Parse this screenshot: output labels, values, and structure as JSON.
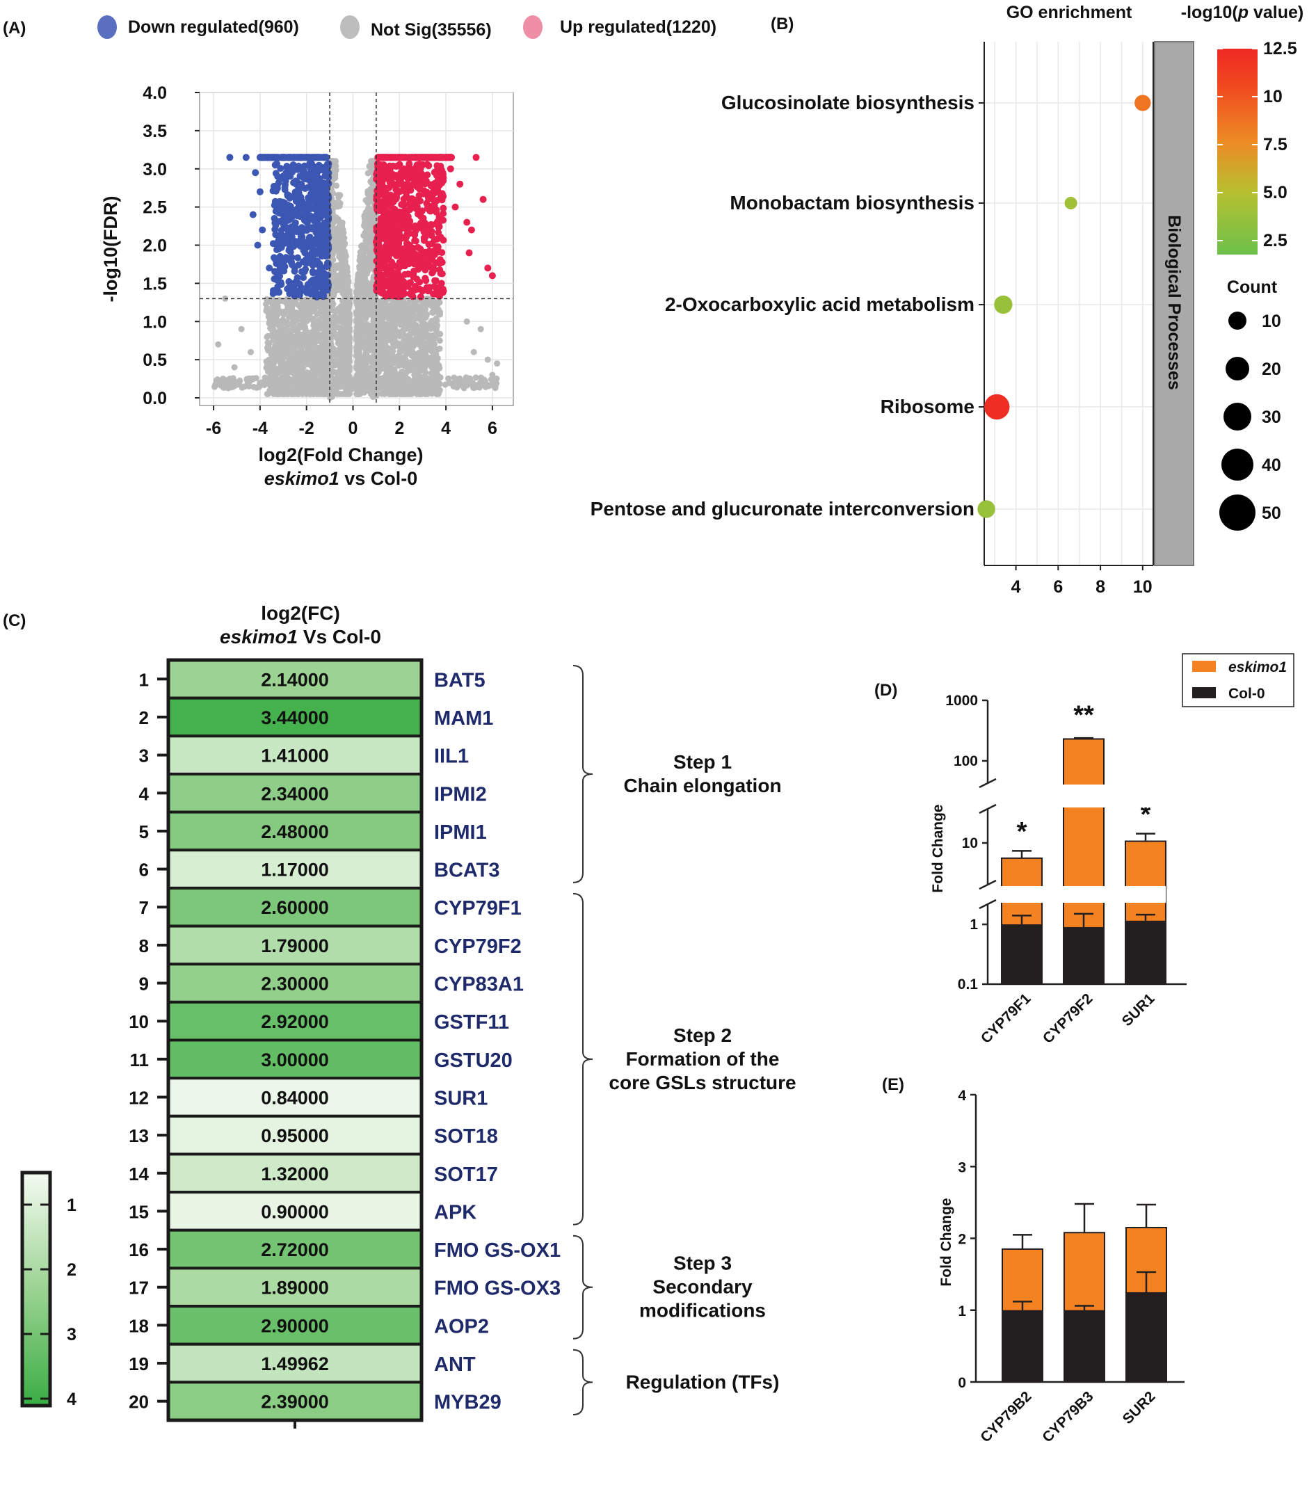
{
  "panels": {
    "a": "(A)",
    "b": "(B)",
    "c": "(C)",
    "d": "(D)",
    "e": "(E)"
  },
  "chart_data": [
    {
      "type": "scatter",
      "panel": "(A)",
      "legend": [
        {
          "label": "Down regulated(960)",
          "color": "#5a6fc0",
          "point_color": "#3c57b3"
        },
        {
          "label": "Not Sig(35556)",
          "color": "#bdbdbd",
          "point_color": "#b9b9b9"
        },
        {
          "label": "Up regulated(1220)",
          "color": "#ee8fa6",
          "point_color": "#e8204f"
        }
      ],
      "xlabel": "log2(Fold Change)",
      "subtitle": {
        "italic": "eskimo1",
        "rest": " vs Col-0"
      },
      "ylabel": "-log10(FDR)",
      "xlim": [
        -6.6,
        6.9
      ],
      "ylim": [
        -0.1,
        4.0
      ],
      "x_ticks": [
        "-6",
        "-4",
        "-2",
        "0",
        "2",
        "4",
        "6"
      ],
      "y_ticks": [
        "0.0",
        "0.5",
        "1.0",
        "1.5",
        "2.0",
        "2.5",
        "3.0",
        "3.5",
        "4.0"
      ],
      "fc_threshold": [
        -1,
        1
      ],
      "fdr_threshold": 1.3,
      "outliers_down": [
        [
          -5.3,
          3.15
        ],
        [
          -4.6,
          3.15
        ],
        [
          -4.2,
          2.95
        ],
        [
          -4.0,
          2.7
        ],
        [
          -3.9,
          2.2
        ],
        [
          -4.1,
          2.0
        ],
        [
          -3.6,
          1.7
        ],
        [
          -4.3,
          2.4
        ]
      ],
      "outliers_up": [
        [
          5.3,
          3.15
        ],
        [
          5.6,
          2.6
        ],
        [
          6.0,
          1.6
        ],
        [
          5.8,
          1.7
        ],
        [
          5.0,
          1.9
        ],
        [
          4.9,
          2.3
        ],
        [
          4.6,
          2.8
        ],
        [
          5.1,
          2.2
        ],
        [
          4.4,
          2.5
        ],
        [
          4.2,
          3.0
        ]
      ],
      "outliers_ns": [
        [
          -5.8,
          0.7
        ],
        [
          -5.5,
          1.3
        ],
        [
          -5.1,
          0.4
        ],
        [
          -4.8,
          0.9
        ],
        [
          -4.4,
          0.6
        ],
        [
          5.8,
          0.5
        ],
        [
          6.0,
          0.3
        ],
        [
          6.2,
          0.45
        ],
        [
          5.5,
          0.9
        ],
        [
          5.2,
          0.6
        ],
        [
          4.9,
          1.0
        ]
      ]
    },
    {
      "type": "bubble",
      "panel": "(B)",
      "title": "GO enrichment",
      "colorbar_title": {
        "pre": "-log10(",
        "italic": "p",
        "post": " value)"
      },
      "colorbar_ticks": [
        "12.5",
        "10",
        "7.5",
        "5.0",
        "2.5"
      ],
      "color_range": [
        1.5,
        12.5
      ],
      "size_title": "Count",
      "size_legend": [
        "10",
        "20",
        "30",
        "40",
        "50"
      ],
      "facet_label": "Biological Processes",
      "x_ticks": [
        "4",
        "6",
        "8",
        "10"
      ],
      "xlim": [
        2.5,
        10.5
      ],
      "terms": [
        {
          "label": "Glucosinolate biosynthesis",
          "x": 10.0,
          "p": 8.5,
          "count": 7
        },
        {
          "label": "Monobactam biosynthesis",
          "x": 6.6,
          "p": 3.8,
          "count": 3
        },
        {
          "label": "2-Oxocarboxylic acid metabolism",
          "x": 3.4,
          "p": 3.5,
          "count": 10
        },
        {
          "label": "Ribosome",
          "x": 3.1,
          "p": 12.3,
          "count": 24
        },
        {
          "label": "Pentose and glucuronate interconversion",
          "x": 2.6,
          "p": 3.4,
          "count": 9
        }
      ]
    },
    {
      "type": "heatmap",
      "panel": "(C)",
      "title": "log2(FC)",
      "subtitle": {
        "italic": "eskimo1",
        "rest": " Vs Col-0"
      },
      "scale_ticks": [
        "1",
        "2",
        "3",
        "4"
      ],
      "rows": [
        {
          "n": "1",
          "value": "2.14000",
          "gene": "BAT5"
        },
        {
          "n": "2",
          "value": "3.44000",
          "gene": "MAM1"
        },
        {
          "n": "3",
          "value": "1.41000",
          "gene": "IIL1"
        },
        {
          "n": "4",
          "value": "2.34000",
          "gene": "IPMI2"
        },
        {
          "n": "5",
          "value": "2.48000",
          "gene": "IPMI1"
        },
        {
          "n": "6",
          "value": "1.17000",
          "gene": "BCAT3"
        },
        {
          "n": "7",
          "value": "2.60000",
          "gene": "CYP79F1"
        },
        {
          "n": "8",
          "value": "1.79000",
          "gene": "CYP79F2"
        },
        {
          "n": "9",
          "value": "2.30000",
          "gene": "CYP83A1"
        },
        {
          "n": "10",
          "value": "2.92000",
          "gene": "GSTF11"
        },
        {
          "n": "11",
          "value": "3.00000",
          "gene": "GSTU20"
        },
        {
          "n": "12",
          "value": "0.84000",
          "gene": "SUR1"
        },
        {
          "n": "13",
          "value": "0.95000",
          "gene": "SOT18"
        },
        {
          "n": "14",
          "value": "1.32000",
          "gene": "SOT17"
        },
        {
          "n": "15",
          "value": "0.90000",
          "gene": "APK"
        },
        {
          "n": "16",
          "value": "2.72000",
          "gene": "FMO GS-OX1"
        },
        {
          "n": "17",
          "value": "1.89000",
          "gene": "FMO GS-OX3"
        },
        {
          "n": "18",
          "value": "2.90000",
          "gene": "AOP2"
        },
        {
          "n": "19",
          "value": "1.49962",
          "gene": "ANT"
        },
        {
          "n": "20",
          "value": "2.39000",
          "gene": "MYB29"
        }
      ],
      "groups": [
        {
          "from": 1,
          "to": 6,
          "lines": [
            "Step 1",
            "Chain elongation"
          ]
        },
        {
          "from": 7,
          "to": 15,
          "lines": [
            "Step 2",
            "Formation of the",
            "core GSLs structure"
          ]
        },
        {
          "from": 16,
          "to": 18,
          "lines": [
            "Step 3",
            "Secondary",
            "modifications"
          ]
        },
        {
          "from": 19,
          "to": 20,
          "lines": [
            "Regulation (TFs)"
          ]
        }
      ]
    },
    {
      "type": "bar",
      "panel": "(D)",
      "scale": "log",
      "ylabel": "Fold Change",
      "y_ticks": [
        "0.1",
        "1",
        "10",
        "100",
        "1000"
      ],
      "legend": [
        {
          "label": "eskimo1",
          "italic": true,
          "color": "#f58220"
        },
        {
          "label": "Col-0",
          "italic": false,
          "color": "#231f20"
        }
      ],
      "categories": [
        "CYP79F1",
        "CYP79F2",
        "SUR1"
      ],
      "series": [
        {
          "name": "eskimo1",
          "values": [
            6.5,
            185,
            10.5
          ],
          "errors": [
            1.5,
            5,
            2.5
          ]
        },
        {
          "name": "Col-0",
          "values": [
            1.0,
            0.9,
            1.15
          ],
          "errors": [
            0.4,
            0.6,
            0.3
          ]
        }
      ],
      "significance": [
        "*",
        "**",
        "*"
      ]
    },
    {
      "type": "bar",
      "panel": "(E)",
      "ylabel": "Fold Change",
      "ylim": [
        0,
        4
      ],
      "y_ticks": [
        "0",
        "1",
        "2",
        "3",
        "4"
      ],
      "categories": [
        "CYP79B2",
        "CYP79B3",
        "SUR2"
      ],
      "series": [
        {
          "name": "eskimo1",
          "values": [
            1.85,
            2.08,
            2.15
          ],
          "errors": [
            0.2,
            0.4,
            0.32
          ]
        },
        {
          "name": "Col-0",
          "values": [
            1.0,
            1.0,
            1.25
          ],
          "errors": [
            0.12,
            0.06,
            0.28
          ]
        }
      ]
    }
  ]
}
